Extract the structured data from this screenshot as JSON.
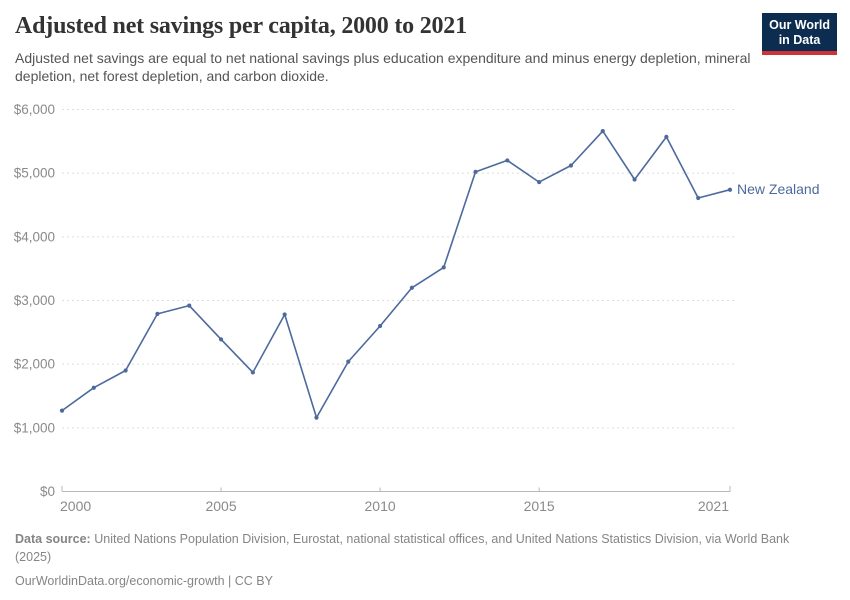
{
  "header": {
    "title": "Adjusted net savings per capita, 2000 to 2021",
    "subtitle": "Adjusted net savings are equal to net national savings plus education expenditure and minus energy depletion, mineral depletion, net forest depletion, and carbon dioxide."
  },
  "logo": {
    "line1": "Our World",
    "line2": "in Data",
    "bg_color": "#0d2d50",
    "accent_color": "#cc3437"
  },
  "chart_data": {
    "type": "line",
    "title": "Adjusted net savings per capita, 2000 to 2021",
    "xlabel": "",
    "ylabel": "",
    "xlim": [
      2000,
      2021
    ],
    "ylim": [
      0,
      6000
    ],
    "grid": "horizontal-dashed",
    "legend_position": "end-of-line-label",
    "x": [
      2000,
      2001,
      2002,
      2003,
      2004,
      2005,
      2006,
      2007,
      2008,
      2009,
      2010,
      2011,
      2012,
      2013,
      2014,
      2015,
      2016,
      2017,
      2018,
      2019,
      2020,
      2021
    ],
    "series": [
      {
        "name": "New Zealand",
        "color": "#4C6A9C",
        "values": [
          1270,
          1630,
          1900,
          2790,
          2920,
          2390,
          1870,
          2780,
          1160,
          2040,
          2600,
          3200,
          3520,
          5020,
          5200,
          4860,
          5120,
          5660,
          4900,
          5570,
          4610,
          4740
        ]
      }
    ],
    "x_ticks": [
      {
        "value": 2000,
        "label": "2000"
      },
      {
        "value": 2005,
        "label": "2005"
      },
      {
        "value": 2010,
        "label": "2010"
      },
      {
        "value": 2015,
        "label": "2015"
      },
      {
        "value": 2021,
        "label": "2021"
      }
    ],
    "y_ticks": [
      {
        "value": 0,
        "label": "$0"
      },
      {
        "value": 1000,
        "label": "$1,000"
      },
      {
        "value": 2000,
        "label": "$2,000"
      },
      {
        "value": 3000,
        "label": "$3,000"
      },
      {
        "value": 4000,
        "label": "$4,000"
      },
      {
        "value": 5000,
        "label": "$5,000"
      },
      {
        "value": 6000,
        "label": "$6,000"
      }
    ],
    "colors": {
      "gridline": "#dedede",
      "axis": "#b9b9b9",
      "tick_label": "#8a8a8a"
    }
  },
  "footer": {
    "source_label": "Data source:",
    "source_text": "United Nations Population Division, Eurostat, national statistical offices, and United Nations Statistics Division, via World Bank (2025)",
    "citation": "OurWorldinData.org/economic-growth | CC BY"
  }
}
